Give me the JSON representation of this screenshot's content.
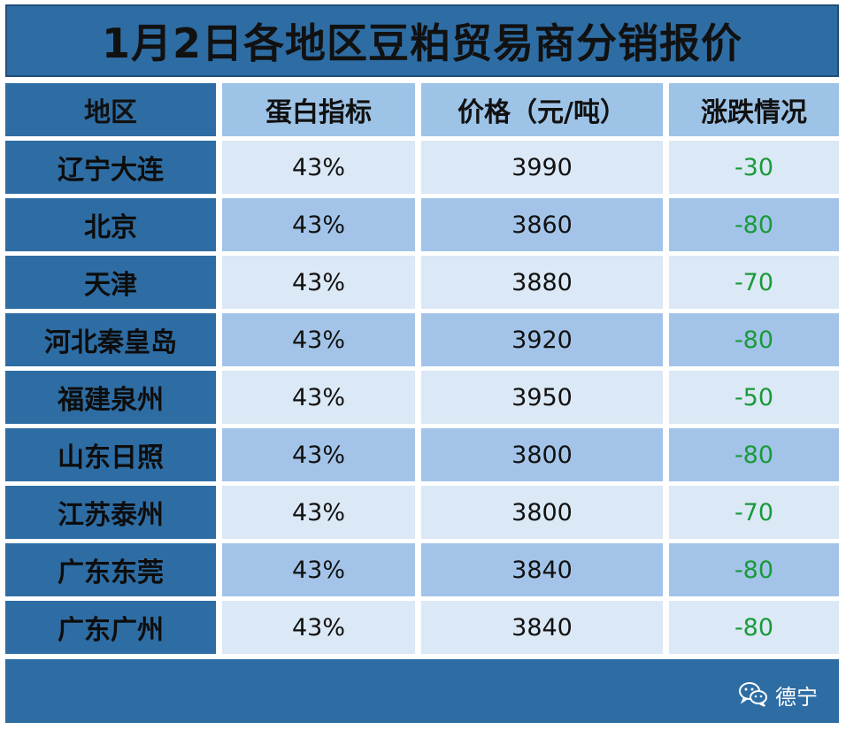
{
  "title": "1月2日各地区豆粕贸易商分销报价",
  "headers": {
    "region": "地区",
    "protein": "蛋白指标",
    "price": "价格（元/吨）",
    "change": "涨跌情况"
  },
  "rows": [
    {
      "region": "辽宁大连",
      "protein": "43%",
      "price": "3990",
      "change": "-30"
    },
    {
      "region": "北京",
      "protein": "43%",
      "price": "3860",
      "change": "-80"
    },
    {
      "region": "天津",
      "protein": "43%",
      "price": "3880",
      "change": "-70"
    },
    {
      "region": "河北秦皇岛",
      "protein": "43%",
      "price": "3920",
      "change": "-80"
    },
    {
      "region": "福建泉州",
      "protein": "43%",
      "price": "3950",
      "change": "-50"
    },
    {
      "region": "山东日照",
      "protein": "43%",
      "price": "3800",
      "change": "-80"
    },
    {
      "region": "江苏泰州",
      "protein": "43%",
      "price": "3800",
      "change": "-70"
    },
    {
      "region": "广东东莞",
      "protein": "43%",
      "price": "3840",
      "change": "-80"
    },
    {
      "region": "广东广州",
      "protein": "43%",
      "price": "3840",
      "change": "-80"
    }
  ],
  "watermark": {
    "icon": "wechat-icon",
    "text": "德宁"
  },
  "colors": {
    "header_dark": "#2e6da4",
    "header_light": "#9dc3e6",
    "row_light": "#dbe8f5",
    "row_mid": "#a3c4e8",
    "change_green": "#1a9a3a"
  }
}
